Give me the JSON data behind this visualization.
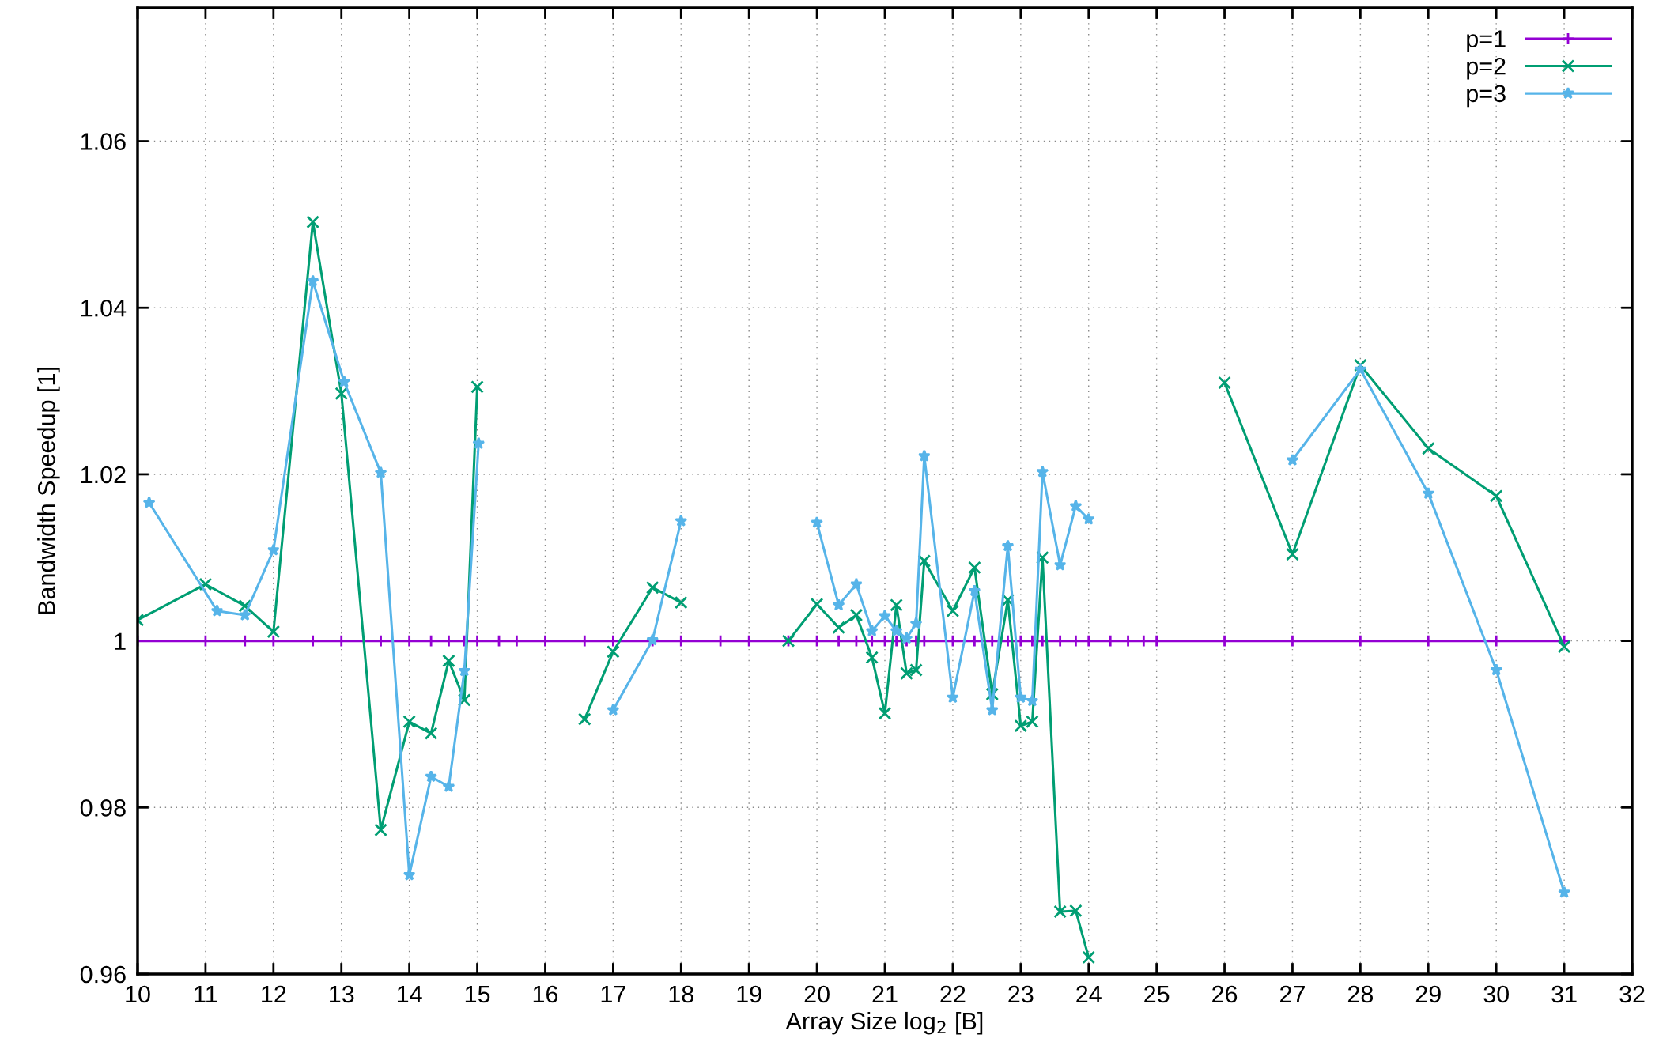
{
  "chart_data": {
    "type": "line",
    "xlabel": "Array Size log$_{2}$ [B]",
    "ylabel": "Bandwidth Speedup [1]",
    "xlim": [
      10,
      32
    ],
    "xticks": [
      10,
      11,
      12,
      13,
      14,
      15,
      16,
      17,
      18,
      19,
      20,
      21,
      22,
      23,
      24,
      25,
      26,
      27,
      28,
      29,
      30,
      31,
      32
    ],
    "ylim": [
      0.96,
      1.076
    ],
    "yticks": [
      0.96,
      0.98,
      1,
      1.02,
      1.04,
      1.06
    ],
    "grid": true,
    "legend": "top right",
    "line_style": "solid",
    "series": [
      {
        "name": "p=1",
        "color": "#9400d3",
        "marker": "plus",
        "x": [
          10,
          11,
          11.58,
          12,
          12.58,
          13,
          13.58,
          14,
          14.32,
          14.58,
          14.81,
          15,
          15.32,
          15.58,
          16,
          16.58,
          17,
          17.58,
          18,
          18.58,
          19,
          19.58,
          20,
          20.32,
          20.58,
          20.81,
          21,
          21.17,
          21.32,
          21.46,
          21.58,
          22,
          22.32,
          22.58,
          22.81,
          23,
          23.17,
          23.32,
          23.58,
          23.81,
          24,
          24.32,
          24.58,
          24.81,
          25,
          26,
          27,
          28,
          29,
          30,
          31
        ],
        "values": [
          1,
          1,
          1,
          1,
          1,
          1,
          1,
          1,
          1,
          1,
          1,
          1,
          1,
          1,
          1,
          1,
          1,
          1,
          1,
          1,
          1,
          1,
          1,
          1,
          1,
          1,
          1,
          1,
          1,
          1,
          1,
          1,
          1,
          1,
          1,
          1,
          1,
          1,
          1,
          1,
          1,
          1,
          1,
          1,
          1,
          1,
          1,
          1,
          1,
          1,
          1
        ]
      },
      {
        "name": "p=2",
        "color": "#009e73",
        "marker": "cross",
        "x": [
          10,
          11,
          11.58,
          12,
          12.58,
          13,
          13.58,
          14,
          14.32,
          14.58,
          14.81,
          15,
          15.58,
          16.58,
          17,
          17.58,
          18,
          19,
          19.58,
          20,
          20.32,
          20.58,
          20.81,
          21,
          21.17,
          21.32,
          21.46,
          21.58,
          22,
          22.32,
          22.58,
          22.81,
          23,
          23.17,
          23.32,
          23.58,
          23.81,
          24,
          25,
          26,
          27,
          28,
          29,
          30,
          31
        ],
        "values": [
          1.0025,
          1.0068,
          1.0042,
          1.0011,
          1.0503,
          1.0297,
          0.9773,
          0.9903,
          0.9889,
          0.9976,
          0.9929,
          1.0305,
          null,
          0.9906,
          0.9987,
          1.0064,
          1.0046,
          null,
          1.0,
          1.0044,
          1.0016,
          1.0031,
          0.998,
          0.9913,
          1.0043,
          0.9961,
          0.9965,
          1.0096,
          1.0036,
          1.0088,
          0.9936,
          1.0049,
          0.9898,
          0.9903,
          1.01,
          0.9675,
          0.9676,
          0.962,
          null,
          1.031,
          1.0104,
          1.0331,
          1.0231,
          1.0174,
          0.9993
        ]
      },
      {
        "name": "p=3",
        "color": "#56b4e9",
        "marker": "star",
        "x": [
          10.17,
          11.17,
          11.58,
          12,
          12.58,
          13.04,
          13.58,
          14,
          14.32,
          14.58,
          14.81,
          15.02,
          16,
          17,
          17.58,
          18,
          19,
          20,
          20.32,
          20.58,
          20.81,
          21,
          21.17,
          21.32,
          21.46,
          21.58,
          22,
          22.32,
          22.58,
          22.81,
          23,
          23.17,
          23.32,
          23.58,
          23.81,
          24,
          25,
          27,
          28,
          29,
          30,
          31
        ],
        "values": [
          1.0166,
          1.0036,
          1.0031,
          1.0109,
          1.0432,
          1.0311,
          1.0202,
          0.9719,
          0.9837,
          0.9825,
          0.9964,
          1.0237,
          null,
          0.9917,
          1.0001,
          1.0144,
          null,
          1.0142,
          1.0043,
          1.0068,
          1.0012,
          1.003,
          1.0012,
          1.0003,
          1.0021,
          1.0222,
          0.9932,
          1.006,
          0.9917,
          1.0114,
          0.9932,
          0.9928,
          1.0203,
          1.0091,
          1.0162,
          1.0146,
          null,
          1.0217,
          1.0326,
          1.0177,
          0.9965,
          0.9698
        ]
      }
    ]
  }
}
